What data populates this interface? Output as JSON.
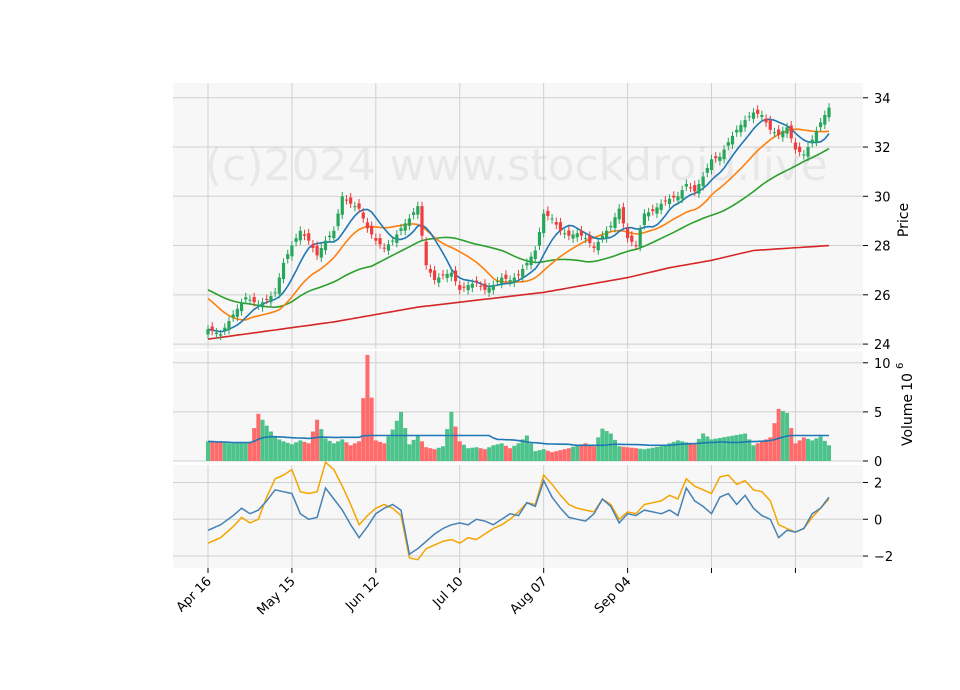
{
  "watermark": "(c)2024 www.stockdroid.live",
  "chart_data": {
    "type": "candlestick",
    "xlabels": [
      "Apr 16",
      "May 15",
      "Jun 12",
      "Jul 10",
      "Aug 07",
      "Sep 04"
    ],
    "price_axis": {
      "label": "Price",
      "ylim": [
        24,
        34
      ],
      "ticks": [
        24,
        26,
        28,
        30,
        32,
        34
      ]
    },
    "volume_axis": {
      "label": "Volume",
      "unit": "10",
      "exp": "6",
      "ylim": [
        0,
        11
      ],
      "ticks": [
        0,
        5,
        10
      ]
    },
    "osc_axis": {
      "ylim": [
        -2.5,
        2.5
      ],
      "ticks": [
        -2,
        0,
        2
      ],
      "tick_labels": [
        "−2",
        "0",
        "2"
      ]
    },
    "colors": {
      "up": "#26a65b",
      "down": "#f03c3c",
      "ma_short": "#1f77b4",
      "ma_mid": "#ff7f0e",
      "ma_long": "#2ca02c",
      "ma_200": "#d62728",
      "vol_ma": "#1f77b4",
      "osc_a": "#4682b4",
      "osc_b": "#f5a500"
    },
    "grid": true,
    "close_keys": [
      [
        0,
        24.6
      ],
      [
        3,
        24.4
      ],
      [
        6,
        25.2
      ],
      [
        9,
        25.9
      ],
      [
        12,
        25.6
      ],
      [
        14,
        25.8
      ],
      [
        16,
        26.1
      ],
      [
        18,
        27.3
      ],
      [
        20,
        28.0
      ],
      [
        22,
        28.6
      ],
      [
        24,
        28.2
      ],
      [
        26,
        27.6
      ],
      [
        28,
        28.2
      ],
      [
        30,
        28.6
      ],
      [
        32,
        30.0
      ],
      [
        34,
        29.7
      ],
      [
        36,
        29.5
      ],
      [
        38,
        28.7
      ],
      [
        40,
        28.2
      ],
      [
        42,
        27.9
      ],
      [
        44,
        28.2
      ],
      [
        46,
        28.7
      ],
      [
        48,
        29.1
      ],
      [
        50,
        29.6
      ],
      [
        52,
        27.2
      ],
      [
        54,
        26.6
      ],
      [
        56,
        26.8
      ],
      [
        58,
        26.9
      ],
      [
        60,
        26.2
      ],
      [
        62,
        26.4
      ],
      [
        64,
        26.5
      ],
      [
        66,
        26.2
      ],
      [
        68,
        26.4
      ],
      [
        70,
        26.7
      ],
      [
        72,
        26.6
      ],
      [
        74,
        26.8
      ],
      [
        76,
        27.3
      ],
      [
        78,
        27.8
      ],
      [
        80,
        29.3
      ],
      [
        82,
        29.1
      ],
      [
        84,
        28.6
      ],
      [
        86,
        28.4
      ],
      [
        88,
        28.5
      ],
      [
        90,
        28.3
      ],
      [
        92,
        27.9
      ],
      [
        94,
        28.4
      ],
      [
        96,
        28.8
      ],
      [
        98,
        29.5
      ],
      [
        100,
        28.3
      ],
      [
        102,
        28.0
      ],
      [
        104,
        29.3
      ],
      [
        106,
        29.4
      ],
      [
        108,
        29.7
      ],
      [
        110,
        29.9
      ],
      [
        112,
        30.0
      ],
      [
        114,
        30.5
      ],
      [
        116,
        30.2
      ],
      [
        118,
        30.8
      ],
      [
        120,
        31.5
      ],
      [
        122,
        31.6
      ],
      [
        124,
        32.2
      ],
      [
        126,
        32.7
      ],
      [
        128,
        33.1
      ],
      [
        130,
        33.4
      ],
      [
        132,
        33.3
      ],
      [
        134,
        32.7
      ],
      [
        136,
        32.5
      ],
      [
        138,
        32.8
      ],
      [
        140,
        31.9
      ],
      [
        142,
        31.7
      ],
      [
        144,
        32.3
      ],
      [
        146,
        33.0
      ],
      [
        148,
        33.6
      ]
    ],
    "volume_keys": [
      [
        0,
        2.0
      ],
      [
        5,
        1.8
      ],
      [
        10,
        1.9
      ],
      [
        12,
        4.8
      ],
      [
        14,
        3.6
      ],
      [
        16,
        2.4
      ],
      [
        18,
        2.0
      ],
      [
        20,
        1.7
      ],
      [
        22,
        2.1
      ],
      [
        24,
        1.8
      ],
      [
        26,
        4.2
      ],
      [
        28,
        2.3
      ],
      [
        30,
        1.8
      ],
      [
        32,
        2.2
      ],
      [
        34,
        1.6
      ],
      [
        36,
        2.0
      ],
      [
        38,
        10.8
      ],
      [
        40,
        2.1
      ],
      [
        42,
        1.8
      ],
      [
        44,
        3.2
      ],
      [
        46,
        5.0
      ],
      [
        48,
        1.7
      ],
      [
        50,
        2.6
      ],
      [
        52,
        1.4
      ],
      [
        54,
        1.2
      ],
      [
        56,
        1.5
      ],
      [
        58,
        5.0
      ],
      [
        60,
        2.0
      ],
      [
        62,
        1.3
      ],
      [
        64,
        1.4
      ],
      [
        66,
        1.2
      ],
      [
        68,
        1.6
      ],
      [
        70,
        1.8
      ],
      [
        72,
        1.3
      ],
      [
        74,
        1.8
      ],
      [
        76,
        2.6
      ],
      [
        78,
        1.0
      ],
      [
        80,
        1.2
      ],
      [
        82,
        0.9
      ],
      [
        84,
        1.1
      ],
      [
        86,
        1.3
      ],
      [
        88,
        1.6
      ],
      [
        90,
        1.8
      ],
      [
        92,
        1.5
      ],
      [
        94,
        3.3
      ],
      [
        96,
        2.8
      ],
      [
        98,
        1.5
      ],
      [
        100,
        1.4
      ],
      [
        104,
        1.2
      ],
      [
        108,
        1.5
      ],
      [
        112,
        2.1
      ],
      [
        116,
        1.7
      ],
      [
        118,
        2.8
      ],
      [
        120,
        2.2
      ],
      [
        124,
        2.5
      ],
      [
        128,
        2.8
      ],
      [
        130,
        1.6
      ],
      [
        134,
        2.4
      ],
      [
        136,
        5.3
      ],
      [
        138,
        4.9
      ],
      [
        140,
        1.8
      ],
      [
        142,
        2.4
      ],
      [
        144,
        2.1
      ],
      [
        146,
        2.5
      ],
      [
        148,
        1.6
      ]
    ],
    "osc_a_keys": [
      [
        0,
        -0.6
      ],
      [
        3,
        -0.3
      ],
      [
        6,
        0.2
      ],
      [
        8,
        0.6
      ],
      [
        10,
        0.3
      ],
      [
        12,
        0.5
      ],
      [
        14,
        1.0
      ],
      [
        16,
        1.6
      ],
      [
        18,
        1.5
      ],
      [
        20,
        1.4
      ],
      [
        22,
        0.3
      ],
      [
        24,
        0.0
      ],
      [
        26,
        0.1
      ],
      [
        28,
        1.7
      ],
      [
        30,
        1.1
      ],
      [
        32,
        0.5
      ],
      [
        34,
        -0.3
      ],
      [
        36,
        -1.0
      ],
      [
        38,
        -0.4
      ],
      [
        40,
        0.3
      ],
      [
        42,
        0.6
      ],
      [
        44,
        0.8
      ],
      [
        46,
        0.5
      ],
      [
        48,
        -1.9
      ],
      [
        50,
        -1.6
      ],
      [
        52,
        -1.2
      ],
      [
        54,
        -0.8
      ],
      [
        56,
        -0.5
      ],
      [
        58,
        -0.3
      ],
      [
        60,
        -0.2
      ],
      [
        62,
        -0.3
      ],
      [
        64,
        0.0
      ],
      [
        66,
        -0.1
      ],
      [
        68,
        -0.3
      ],
      [
        70,
        0.0
      ],
      [
        72,
        0.3
      ],
      [
        74,
        0.2
      ],
      [
        76,
        0.9
      ],
      [
        78,
        0.7
      ],
      [
        80,
        2.1
      ],
      [
        82,
        1.2
      ],
      [
        84,
        0.6
      ],
      [
        86,
        0.1
      ],
      [
        88,
        0.0
      ],
      [
        90,
        -0.1
      ],
      [
        92,
        0.3
      ],
      [
        94,
        1.1
      ],
      [
        96,
        0.7
      ],
      [
        98,
        -0.2
      ],
      [
        100,
        0.3
      ],
      [
        102,
        0.2
      ],
      [
        104,
        0.5
      ],
      [
        106,
        0.4
      ],
      [
        108,
        0.3
      ],
      [
        110,
        0.5
      ],
      [
        112,
        0.2
      ],
      [
        114,
        1.7
      ],
      [
        116,
        1.0
      ],
      [
        118,
        0.7
      ],
      [
        120,
        0.3
      ],
      [
        122,
        1.2
      ],
      [
        124,
        1.4
      ],
      [
        126,
        0.8
      ],
      [
        128,
        1.3
      ],
      [
        130,
        0.6
      ],
      [
        132,
        0.2
      ],
      [
        134,
        0.0
      ],
      [
        136,
        -1.0
      ],
      [
        138,
        -0.6
      ],
      [
        140,
        -0.7
      ],
      [
        142,
        -0.5
      ],
      [
        144,
        0.3
      ],
      [
        146,
        0.6
      ],
      [
        148,
        1.2
      ]
    ],
    "osc_b_keys": [
      [
        0,
        -1.3
      ],
      [
        3,
        -1.0
      ],
      [
        6,
        -0.4
      ],
      [
        8,
        0.1
      ],
      [
        10,
        -0.2
      ],
      [
        12,
        0.0
      ],
      [
        14,
        1.2
      ],
      [
        16,
        2.2
      ],
      [
        18,
        2.4
      ],
      [
        20,
        2.7
      ],
      [
        22,
        1.5
      ],
      [
        24,
        1.4
      ],
      [
        26,
        1.5
      ],
      [
        28,
        3.1
      ],
      [
        30,
        2.7
      ],
      [
        32,
        1.8
      ],
      [
        34,
        0.8
      ],
      [
        36,
        -0.3
      ],
      [
        38,
        0.2
      ],
      [
        40,
        0.6
      ],
      [
        42,
        0.8
      ],
      [
        44,
        0.6
      ],
      [
        46,
        0.2
      ],
      [
        48,
        -2.1
      ],
      [
        50,
        -2.2
      ],
      [
        52,
        -1.6
      ],
      [
        54,
        -1.4
      ],
      [
        56,
        -1.2
      ],
      [
        58,
        -1.1
      ],
      [
        60,
        -1.3
      ],
      [
        62,
        -1.0
      ],
      [
        64,
        -1.1
      ],
      [
        66,
        -0.8
      ],
      [
        68,
        -0.5
      ],
      [
        70,
        -0.3
      ],
      [
        72,
        0.0
      ],
      [
        74,
        0.4
      ],
      [
        76,
        0.9
      ],
      [
        78,
        0.8
      ],
      [
        80,
        2.4
      ],
      [
        82,
        1.9
      ],
      [
        84,
        1.3
      ],
      [
        86,
        0.8
      ],
      [
        88,
        0.6
      ],
      [
        90,
        0.5
      ],
      [
        92,
        0.4
      ],
      [
        94,
        1.1
      ],
      [
        96,
        0.8
      ],
      [
        98,
        0.0
      ],
      [
        100,
        0.4
      ],
      [
        102,
        0.3
      ],
      [
        104,
        0.8
      ],
      [
        106,
        0.9
      ],
      [
        108,
        1.0
      ],
      [
        110,
        1.3
      ],
      [
        112,
        1.1
      ],
      [
        114,
        2.2
      ],
      [
        116,
        1.8
      ],
      [
        118,
        1.6
      ],
      [
        120,
        1.4
      ],
      [
        122,
        2.3
      ],
      [
        124,
        2.4
      ],
      [
        126,
        1.9
      ],
      [
        128,
        2.1
      ],
      [
        130,
        1.6
      ],
      [
        132,
        1.5
      ],
      [
        134,
        1.0
      ],
      [
        136,
        -0.3
      ],
      [
        138,
        -0.5
      ],
      [
        140,
        -0.7
      ],
      [
        142,
        -0.5
      ],
      [
        144,
        0.1
      ],
      [
        146,
        0.6
      ],
      [
        148,
        1.1
      ]
    ],
    "ma_200_keys": [
      [
        0,
        24.2
      ],
      [
        30,
        24.9
      ],
      [
        50,
        25.5
      ],
      [
        60,
        25.7
      ],
      [
        80,
        26.1
      ],
      [
        100,
        26.7
      ],
      [
        110,
        27.1
      ],
      [
        120,
        27.4
      ],
      [
        130,
        27.8
      ],
      [
        148,
        28.0
      ]
    ]
  }
}
